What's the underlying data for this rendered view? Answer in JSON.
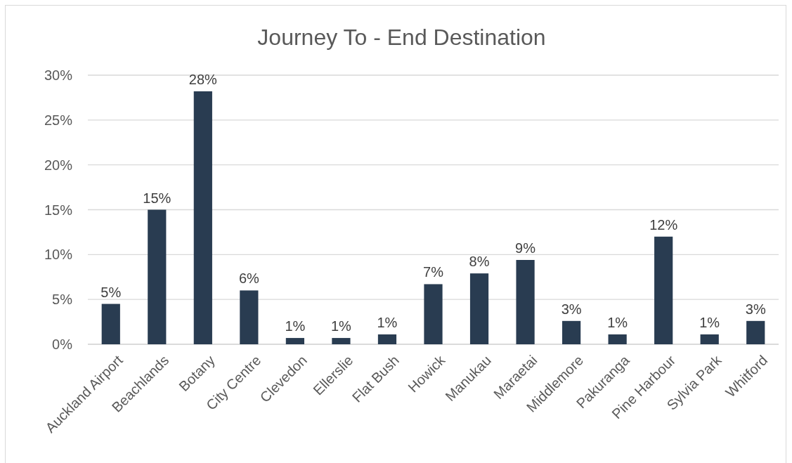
{
  "chart_data": {
    "type": "bar",
    "title": "Journey To - End Destination",
    "categories": [
      "Auckland Airport",
      "Beachlands",
      "Botany",
      "City Centre",
      "Clevedon",
      "Ellerslie",
      "Flat Bush",
      "Howick",
      "Manukau",
      "Maraetai",
      "Middlemore",
      "Pakuranga",
      "Pine Harbour",
      "Sylvia Park",
      "Whitford"
    ],
    "values": [
      4.5,
      15.0,
      28.2,
      6.0,
      0.7,
      0.7,
      1.1,
      6.7,
      7.9,
      9.4,
      2.6,
      1.1,
      12.0,
      1.1,
      2.6
    ],
    "value_labels": [
      "5%",
      "15%",
      "28%",
      "6%",
      "1%",
      "1%",
      "1%",
      "7%",
      "8%",
      "9%",
      "3%",
      "1%",
      "12%",
      "1%",
      "3%"
    ],
    "color": "#293c51",
    "ylim": [
      0,
      30
    ],
    "yticks": [
      {
        "value": 0,
        "label": "0%"
      },
      {
        "value": 5,
        "label": "5%"
      },
      {
        "value": 10,
        "label": "10%"
      },
      {
        "value": 15,
        "label": "15%"
      },
      {
        "value": 20,
        "label": "20%"
      },
      {
        "value": 25,
        "label": "25%"
      },
      {
        "value": 30,
        "label": "30%"
      }
    ],
    "grid": "y"
  }
}
